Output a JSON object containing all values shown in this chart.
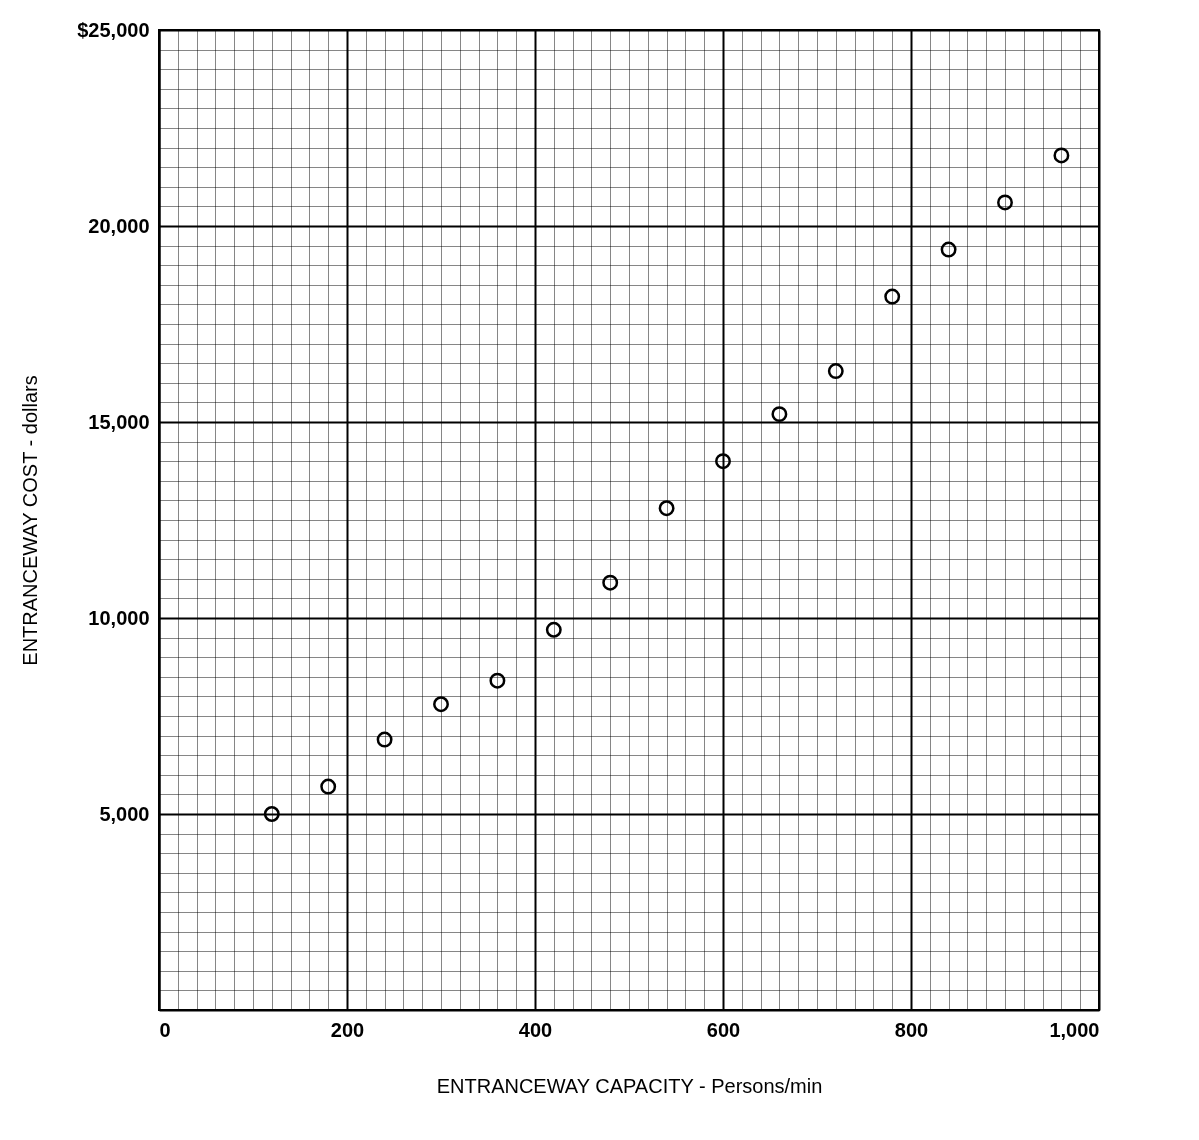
{
  "chart_data": {
    "type": "scatter",
    "xlabel": "ENTRANCEWAY CAPACITY  -  Persons/min",
    "ylabel": "ENTRANCEWAY COST  -  dollars",
    "x": [
      120,
      180,
      240,
      300,
      360,
      420,
      480,
      540,
      600,
      660,
      720,
      780,
      840,
      900,
      960
    ],
    "series": [
      {
        "color": "#000000",
        "values": [
          5000,
          5700,
          6900,
          7800,
          8400,
          9700,
          10900,
          12800,
          14000,
          15200,
          16300,
          18200,
          19400,
          20600,
          21800
        ]
      }
    ],
    "xlim": [
      0,
      1000
    ],
    "xticks": [
      0,
      200,
      400,
      600,
      800,
      {
        "value": 1000,
        "label": "1,000"
      }
    ],
    "ylim": [
      0,
      25000
    ],
    "yticks": [
      {
        "value": 5000,
        "label": "5,000"
      },
      {
        "value": 10000,
        "label": "10,000"
      },
      {
        "value": 15000,
        "label": "15,000"
      },
      {
        "value": 20000,
        "label": "20,000"
      },
      {
        "value": 25000,
        "label": "$25,000"
      }
    ],
    "grid": true,
    "marker": "circle"
  }
}
